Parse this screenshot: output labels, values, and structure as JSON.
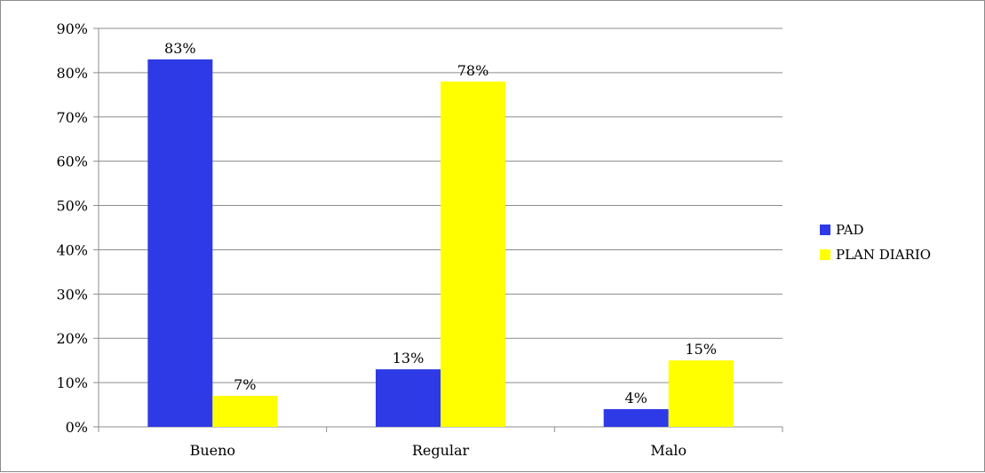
{
  "chart_data": {
    "type": "bar",
    "categories": [
      "Bueno",
      "Regular",
      "Malo"
    ],
    "series": [
      {
        "name": "PAD",
        "values": [
          83,
          13,
          4
        ],
        "labels": [
          "83%",
          "13%",
          "4%"
        ],
        "color": "#2e3ae6"
      },
      {
        "name": "PLAN DIARIO",
        "values": [
          7,
          78,
          15
        ],
        "labels": [
          "7%",
          "78%",
          "15%"
        ],
        "color": "#ffff00"
      }
    ],
    "yticks": [
      "0%",
      "10%",
      "20%",
      "30%",
      "40%",
      "50%",
      "60%",
      "70%",
      "80%",
      "90%"
    ],
    "ylim": [
      0,
      90
    ],
    "grid": true,
    "legend_position": "right"
  }
}
